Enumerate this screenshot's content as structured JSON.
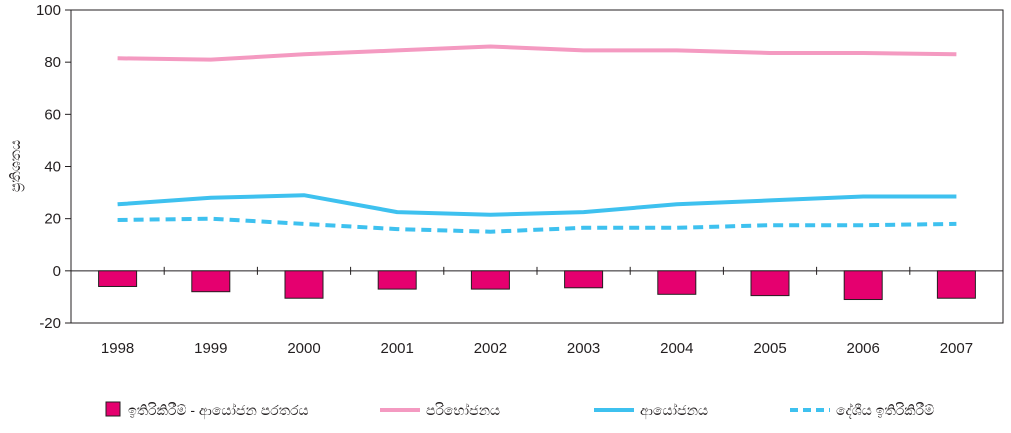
{
  "chart_data": {
    "type": "bar+line",
    "title": "",
    "xlabel": "",
    "ylabel": "ප්‍රතිශතය",
    "ylim": [
      -20,
      100
    ],
    "yticks": [
      -20,
      0,
      20,
      40,
      60,
      80,
      100
    ],
    "grid": false,
    "legend_position": "bottom",
    "categories": [
      "1998",
      "1999",
      "2000",
      "2001",
      "2002",
      "2003",
      "2004",
      "2005",
      "2006",
      "2007"
    ],
    "series": [
      {
        "name": "ඉතිරිකිරීම් - ආයෝජන පරතරය",
        "type": "bar",
        "color": "#e5006f",
        "values": [
          -6,
          -8,
          -10.5,
          -7,
          -7,
          -6.5,
          -9,
          -9.5,
          -11,
          -10.5
        ]
      },
      {
        "name": "පරිභෝජනය",
        "type": "line",
        "style": "solid",
        "color": "#f49ac1",
        "values": [
          81.5,
          81,
          83,
          84.5,
          86,
          84.5,
          84.5,
          83.5,
          83.5,
          83
        ]
      },
      {
        "name": "ආයෝජනය",
        "type": "line",
        "style": "solid",
        "color": "#3ec1ef",
        "values": [
          25.5,
          28,
          29,
          22.5,
          21.5,
          22.5,
          25.5,
          27,
          28.5,
          28.5
        ]
      },
      {
        "name": "දේශීය ඉතිරිකිරීම්",
        "type": "line",
        "style": "dashed",
        "color": "#3ec1ef",
        "values": [
          19.5,
          20,
          18,
          16,
          15,
          16.5,
          16.5,
          17.5,
          17.5,
          18
        ]
      }
    ]
  }
}
